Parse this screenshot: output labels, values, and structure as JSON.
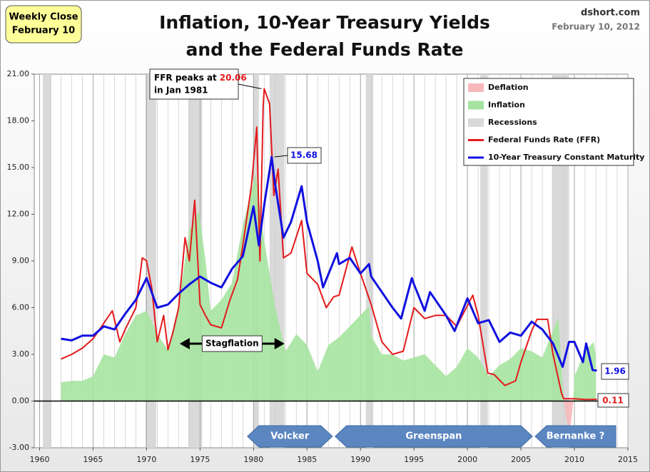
{
  "chart_data": {
    "type": "line",
    "title": [
      "Inflation, 10-Year Treasury Yields",
      "and the Federal Funds Rate"
    ],
    "badge": [
      "Weekly Close",
      "February 10"
    ],
    "source": "dshort.com",
    "date": "February 10, 2012",
    "xlim": [
      1959.5,
      2015
    ],
    "xticks": [
      1960,
      1965,
      1970,
      1975,
      1980,
      1985,
      1990,
      1995,
      2000,
      2005,
      2010,
      2015
    ],
    "ylim": [
      -3,
      21
    ],
    "yticks": [
      {
        "value": -3,
        "label": "-3.00"
      },
      {
        "value": 0,
        "label": "0.00"
      },
      {
        "value": 3,
        "label": "3.00"
      },
      {
        "value": 6,
        "label": "6.00"
      },
      {
        "value": 9,
        "label": "9.00"
      },
      {
        "value": 12,
        "label": "12.00"
      },
      {
        "value": 15,
        "label": "15.00"
      },
      {
        "value": 18,
        "label": "18.00"
      },
      {
        "value": 21,
        "label": "21.00"
      }
    ],
    "grid": true,
    "legend": "upper right",
    "series": [
      {
        "name": "Deflation",
        "kind": "area",
        "color": "#f7b8ba",
        "x": [
          2009.0,
          2009.3,
          2009.5,
          2009.7,
          2009.9
        ],
        "values": [
          0,
          -1.3,
          -2.0,
          -1.3,
          0
        ]
      },
      {
        "name": "Inflation",
        "kind": "area",
        "color": "#a6e3a0",
        "x": [
          1962,
          1963,
          1964,
          1965,
          1966,
          1967,
          1968,
          1969,
          1970,
          1971,
          1972,
          1973,
          1974,
          1974.9,
          1975.5,
          1976,
          1977,
          1978,
          1979,
          1980.2,
          1981,
          1982,
          1983,
          1984,
          1985,
          1986,
          1987,
          1988,
          1989,
          1990.8,
          1991,
          1992,
          1993,
          1994,
          1995,
          1996,
          1997,
          1998,
          1999,
          2000,
          2001,
          2002,
          2003,
          2004,
          2005,
          2006,
          2007,
          2008.5,
          2008.9,
          2009.0,
          2009.9,
          2010,
          2011,
          2011.8,
          2012
        ],
        "values": [
          1.2,
          1.3,
          1.3,
          1.6,
          3.0,
          2.8,
          4.3,
          5.5,
          5.8,
          4.3,
          3.3,
          6.2,
          11.0,
          12.2,
          9.1,
          5.8,
          6.5,
          7.6,
          11.3,
          14.6,
          10.3,
          6.1,
          3.2,
          4.3,
          3.6,
          1.9,
          3.6,
          4.1,
          4.8,
          6.1,
          4.2,
          3.0,
          3.0,
          2.6,
          2.8,
          3.0,
          2.3,
          1.6,
          2.2,
          3.4,
          2.8,
          1.6,
          2.3,
          2.7,
          3.4,
          3.2,
          2.8,
          5.4,
          1.0,
          0,
          0,
          1.6,
          3.2,
          3.8,
          2.9
        ]
      },
      {
        "name": "Recessions",
        "kind": "band",
        "color": "#d9d9d9",
        "spans": [
          [
            1960.3,
            1961.1
          ],
          [
            1969.9,
            1970.9
          ],
          [
            1973.9,
            1975.2
          ],
          [
            1980.0,
            1980.5
          ],
          [
            1981.5,
            1982.9
          ],
          [
            1990.5,
            1991.2
          ],
          [
            2001.2,
            2001.9
          ],
          [
            2007.9,
            2009.5
          ]
        ]
      },
      {
        "name": "Federal Funds Rate (FFR)",
        "kind": "line",
        "color": "#e41a1c",
        "x": [
          1962,
          1963,
          1964,
          1965,
          1966,
          1966.8,
          1967.5,
          1968,
          1969,
          1969.6,
          1970,
          1970.5,
          1971,
          1971.6,
          1972,
          1972.5,
          1973,
          1973.6,
          1974,
          1974.5,
          1975,
          1975.5,
          1976,
          1977,
          1977.8,
          1978.5,
          1979,
          1979.8,
          1980.3,
          1980.6,
          1980.9,
          1981.0,
          1981.5,
          1981.9,
          1982.3,
          1982.8,
          1983.5,
          1984.5,
          1985,
          1986,
          1986.8,
          1987.5,
          1988,
          1989.2,
          1990,
          1991,
          1992,
          1993,
          1994,
          1995,
          1996,
          1997,
          1998,
          1999,
          2000.5,
          2001,
          2001.9,
          2002.5,
          2003.5,
          2004.5,
          2005,
          2006,
          2006.5,
          2007.5,
          2008,
          2008.8,
          2009,
          2010,
          2011,
          2012.1
        ],
        "values": [
          2.7,
          3.0,
          3.4,
          4.0,
          5.0,
          5.8,
          3.8,
          4.6,
          6.0,
          9.2,
          9.0,
          7.2,
          3.8,
          5.5,
          3.3,
          4.5,
          6.0,
          10.5,
          9.0,
          12.9,
          6.2,
          5.5,
          4.9,
          4.7,
          6.5,
          7.8,
          10.0,
          13.8,
          17.6,
          9.0,
          18.9,
          20.06,
          19.1,
          13.2,
          14.9,
          9.2,
          9.5,
          11.6,
          8.2,
          7.5,
          6.0,
          6.7,
          6.8,
          9.9,
          8.2,
          6.2,
          3.8,
          3.0,
          3.2,
          6.0,
          5.3,
          5.5,
          5.5,
          4.8,
          6.8,
          5.5,
          1.8,
          1.7,
          1.0,
          1.3,
          2.5,
          4.5,
          5.25,
          5.25,
          3.0,
          0.5,
          0.15,
          0.15,
          0.1,
          0.11
        ]
      },
      {
        "name": "10-Year Treasury Constant Maturity",
        "kind": "line",
        "color": "#1010e0",
        "x": [
          1962,
          1963,
          1964,
          1965,
          1966,
          1967,
          1968,
          1969,
          1970,
          1971,
          1972,
          1973,
          1974,
          1975,
          1976,
          1977,
          1978,
          1979,
          1980,
          1980.5,
          1981,
          1981.7,
          1982,
          1982.8,
          1983.5,
          1984.5,
          1985,
          1986,
          1986.5,
          1987.8,
          1988,
          1989,
          1990,
          1990.8,
          1991,
          1992,
          1993,
          1993.8,
          1994.8,
          1995,
          1996,
          1996.5,
          1997,
          1998,
          1998.8,
          2000,
          2001,
          2002,
          2003,
          2004,
          2005,
          2006,
          2007,
          2008,
          2008.9,
          2009.5,
          2010,
          2010.8,
          2011.1,
          2011.7,
          2012.1
        ],
        "values": [
          4.0,
          3.9,
          4.2,
          4.2,
          4.8,
          4.6,
          5.6,
          6.5,
          7.9,
          6.0,
          6.2,
          6.9,
          7.5,
          8.0,
          7.6,
          7.3,
          8.5,
          9.3,
          12.5,
          10.0,
          12.6,
          15.68,
          14.0,
          10.5,
          11.5,
          13.8,
          11.5,
          9.0,
          7.3,
          9.5,
          8.8,
          9.2,
          8.2,
          8.8,
          8.0,
          7.0,
          6.0,
          5.3,
          7.9,
          7.5,
          5.8,
          7.0,
          6.5,
          5.5,
          4.5,
          6.6,
          5.0,
          5.2,
          3.8,
          4.4,
          4.2,
          5.1,
          4.6,
          3.7,
          2.2,
          3.8,
          3.8,
          2.5,
          3.7,
          2.0,
          1.96
        ]
      }
    ],
    "annotations": {
      "ffr_peak": [
        "FFR peaks at",
        "in Jan 1981"
      ],
      "stagflation": {
        "label": "Stagflation",
        "start": 1973.1,
        "end": 1982.9
      },
      "chairs": [
        {
          "name": "Volcker",
          "start": 1979.3,
          "end": 1987.5
        },
        {
          "name": "Greenspan",
          "start": 1987.5,
          "end": 2006.2
        },
        {
          "name": "Bernanke  ?",
          "start": 2006.2,
          "end": 2014.0
        }
      ]
    }
  }
}
